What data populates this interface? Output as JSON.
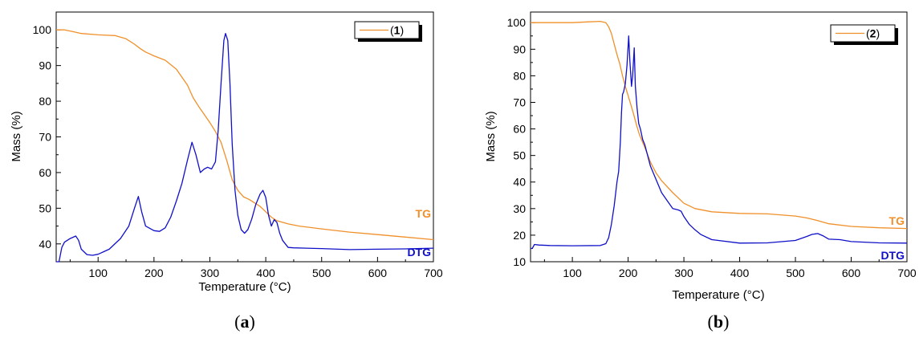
{
  "colors": {
    "tg": "#f0902a",
    "dtg": "#1010c8",
    "axis": "#000000"
  },
  "panels": [
    {
      "panel_label_open": "(",
      "panel_label_letter": "a",
      "panel_label_close": ")",
      "legend": {
        "open": "(",
        "num": "1",
        "close": ")"
      },
      "tg_label": "TG",
      "dtg_label": "DTG",
      "chart_data": {
        "type": "line",
        "xlabel": "Temperature (°C)",
        "ylabel": "Mass (%)",
        "xlim": [
          25,
          700
        ],
        "ylim": [
          35,
          105
        ],
        "xticks": [
          100,
          200,
          300,
          400,
          500,
          600,
          700
        ],
        "yticks": [
          40,
          50,
          60,
          70,
          80,
          90,
          100
        ],
        "grid": false,
        "legend_position": "top-right",
        "series": [
          {
            "name": "(1)",
            "color": "#f0902a",
            "x": [
              25,
              40,
              55,
              70,
              100,
              130,
              150,
              165,
              175,
              185,
              200,
              220,
              240,
              260,
              270,
              280,
              300,
              310,
              320,
              330,
              340,
              350,
              360,
              370,
              380,
              390,
              400,
              410,
              420,
              440,
              460,
              500,
              550,
              600,
              650,
              700
            ],
            "y": [
              100,
              100,
              99.5,
              99,
              98.6,
              98.4,
              97.5,
              96,
              94.8,
              93.8,
              92.7,
              91.5,
              89,
              84.5,
              81,
              78.5,
              74,
              71.5,
              68.5,
              63.5,
              58,
              55,
              53.2,
              52.5,
              51.5,
              50.5,
              49,
              47.5,
              46.5,
              45.6,
              45,
              44.2,
              43.3,
              42.6,
              41.9,
              41.2
            ]
          },
          {
            "name": "DTG",
            "color": "#1010c8",
            "x": [
              25,
              30,
              35,
              40,
              50,
              60,
              65,
              70,
              80,
              90,
              100,
              120,
              140,
              155,
              165,
              172,
              178,
              185,
              200,
              210,
              220,
              230,
              240,
              250,
              260,
              268,
              275,
              283,
              290,
              296,
              303,
              310,
              315,
              320,
              325,
              328,
              332,
              336,
              340,
              345,
              350,
              356,
              362,
              368,
              375,
              382,
              390,
              395,
              400,
              405,
              410,
              415,
              420,
              425,
              430,
              440,
              450,
              500,
              550,
              600,
              650,
              700
            ],
            "y": [
              35,
              35,
              39,
              40.5,
              41.5,
              42.2,
              41,
              38.5,
              37,
              36.8,
              37.1,
              38.5,
              41.5,
              45,
              50,
              53.3,
              49,
              45,
              43.7,
              43.5,
              44.5,
              47.5,
              52,
              57,
              63.5,
              68.5,
              65,
              60,
              61,
              61.5,
              61,
              63,
              72,
              85,
              97,
              99,
              97,
              85,
              68,
              55,
              48,
              44,
              43,
              44,
              47,
              51,
              54,
              55,
              53,
              48,
              45,
              46.8,
              46,
              43,
              41,
              39,
              38.9,
              38.7,
              38.4,
              38.5,
              38.6,
              38.8
            ]
          }
        ]
      }
    },
    {
      "panel_label_open": "(",
      "panel_label_letter": "b",
      "panel_label_close": ")",
      "legend": {
        "open": "(",
        "num": "2",
        "close": ")"
      },
      "tg_label": "TG",
      "dtg_label": "DTG",
      "chart_data": {
        "type": "line",
        "xlabel": "Temperature (°C)",
        "ylabel": "Mass (%)",
        "xlim": [
          25,
          700
        ],
        "ylim": [
          10,
          104
        ],
        "xticks": [
          100,
          200,
          300,
          400,
          500,
          600,
          700
        ],
        "yticks": [
          10,
          20,
          30,
          40,
          50,
          60,
          70,
          80,
          90,
          100
        ],
        "grid": false,
        "legend_position": "top-right",
        "series": [
          {
            "name": "(2)",
            "color": "#f0902a",
            "x": [
              25,
              50,
              100,
              130,
              150,
              160,
              165,
              170,
              175,
              180,
              185,
              190,
              195,
              200,
              205,
              210,
              215,
              220,
              230,
              240,
              250,
              260,
              280,
              300,
              320,
              350,
              400,
              450,
              500,
              520,
              540,
              560,
              600,
              650,
              700
            ],
            "y": [
              100,
              100,
              100,
              100.3,
              100.5,
              100,
              98.5,
              96,
              92,
              88,
              84.5,
              80,
              76,
              72.5,
              69,
              65.5,
              61.5,
              58,
              53,
              47.5,
              43.5,
              40.5,
              36,
              32,
              30,
              28.8,
              28.2,
              28,
              27.2,
              26.5,
              25.5,
              24.3,
              23.3,
              22.8,
              22.5
            ]
          },
          {
            "name": "DTG",
            "color": "#1010c8",
            "x": [
              25,
              28,
              32,
              40,
              60,
              100,
              150,
              160,
              165,
              170,
              175,
              180,
              183,
              186,
              188,
              190,
              192,
              195,
              198,
              201,
              203,
              206,
              208,
              211,
              213,
              216,
              219,
              222,
              226,
              230,
              235,
              240,
              250,
              260,
              270,
              280,
              290,
              295,
              300,
              310,
              320,
              330,
              350,
              400,
              450,
              500,
              520,
              530,
              540,
              550,
              560,
              580,
              600,
              650,
              700
            ],
            "y": [
              15,
              15,
              16.5,
              16.3,
              16.1,
              16,
              16.1,
              16.8,
              19,
              24,
              31,
              40,
              44,
              55,
              66,
              73,
              74,
              77,
              84,
              95,
              86,
              76,
              80,
              90.5,
              76,
              68,
              62,
              60,
              56,
              54,
              50,
              46,
              41,
              36,
              33,
              30,
              29.5,
              29,
              27,
              24,
              22,
              20.3,
              18.3,
              17,
              17.1,
              18,
              19.5,
              20.3,
              20.6,
              19.7,
              18.5,
              18.3,
              17.6,
              17.1,
              17
            ]
          }
        ]
      }
    }
  ]
}
